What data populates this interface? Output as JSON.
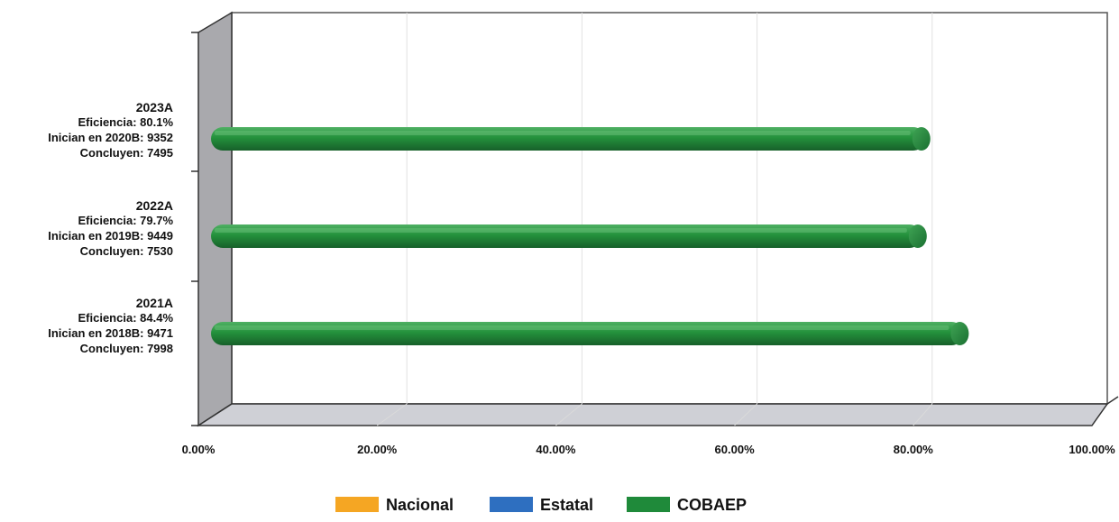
{
  "chart_data": {
    "type": "bar",
    "orientation": "horizontal",
    "three_d": true,
    "categories": [
      {
        "label": "2023A",
        "lines": [
          "Eficiencia: 80.1%",
          "Inician en 2020B: 9352",
          "Concluyen: 7495"
        ]
      },
      {
        "label": "2022A",
        "lines": [
          "Eficiencia: 79.7%",
          "Inician en 2019B: 9449",
          "Concluyen: 7530"
        ]
      },
      {
        "label": "2021A",
        "lines": [
          "Eficiencia: 84.4%",
          "Inician en 2018B: 9471",
          "Concluyen: 7998"
        ]
      }
    ],
    "series": [
      {
        "name": "Nacional",
        "color": "#f5a623",
        "values": [
          null,
          null,
          null
        ]
      },
      {
        "name": "Estatal",
        "color": "#2e6fc0",
        "values": [
          null,
          null,
          null
        ]
      },
      {
        "name": "COBAEP",
        "color": "#1f8a3a",
        "values": [
          80.1,
          79.7,
          84.4
        ]
      }
    ],
    "xlim": [
      0,
      100
    ],
    "x_ticks": [
      "0.00%",
      "20.00%",
      "40.00%",
      "60.00%",
      "80.00%",
      "100.00%"
    ],
    "grid": true,
    "legend_position": "bottom"
  }
}
